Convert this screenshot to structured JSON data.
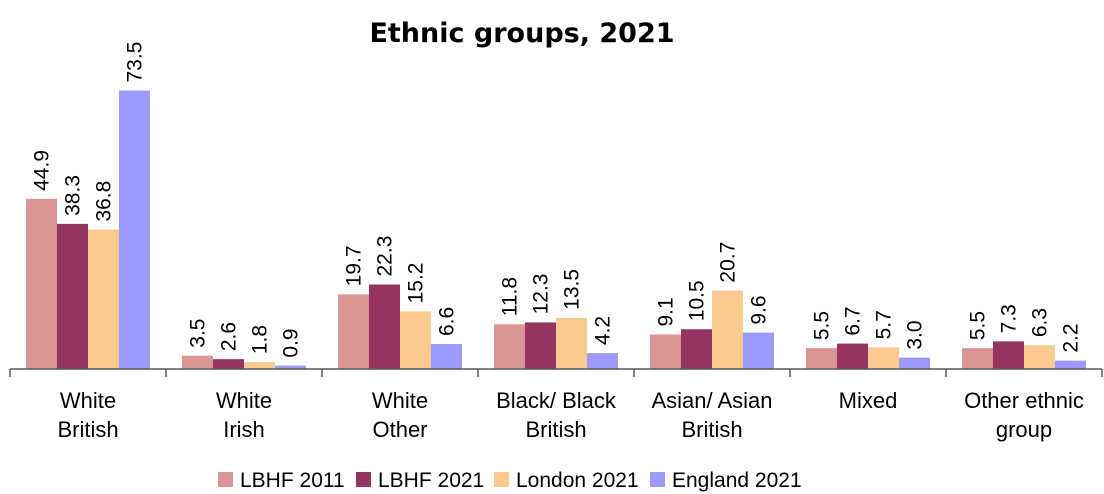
{
  "chart_data": {
    "type": "bar",
    "title": "Ethnic groups, 2021",
    "categories": [
      [
        "White",
        "British"
      ],
      [
        "White",
        "Irish"
      ],
      [
        "White",
        "Other"
      ],
      [
        "Black/ Black",
        "British"
      ],
      [
        "Asian/ Asian",
        "British"
      ],
      [
        "Mixed"
      ],
      [
        "Other ethnic",
        "group"
      ]
    ],
    "series": [
      {
        "name": "LBHF 2011",
        "color": "#d99594",
        "values": [
          44.9,
          3.5,
          19.7,
          11.8,
          9.1,
          5.5,
          5.5
        ]
      },
      {
        "name": "LBHF 2021",
        "color": "#953462",
        "values": [
          38.3,
          2.6,
          22.3,
          12.3,
          10.5,
          6.7,
          7.3
        ]
      },
      {
        "name": "London 2021",
        "color": "#fcc98e",
        "values": [
          36.8,
          1.8,
          15.2,
          13.5,
          20.7,
          5.7,
          6.3
        ]
      },
      {
        "name": "England 2021",
        "color": "#9999ff",
        "values": [
          73.5,
          0.9,
          6.6,
          4.2,
          9.6,
          3.0,
          2.2
        ]
      }
    ],
    "ylim": [
      0,
      80
    ],
    "grid": false,
    "legend": "bottom",
    "data_labels": "rotated"
  }
}
